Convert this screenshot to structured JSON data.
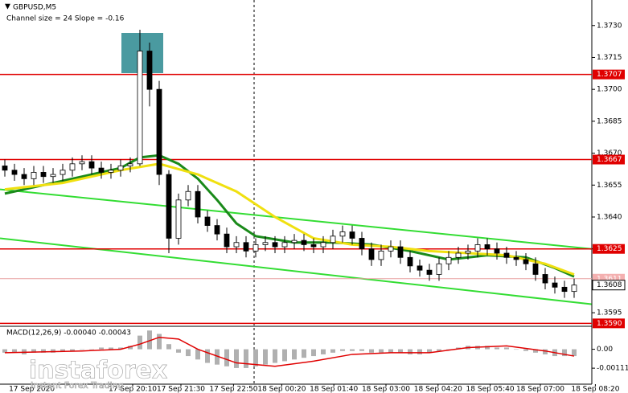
{
  "chart_data": {
    "type": "candlestick",
    "title": "GBPUSD,M5",
    "subtitle": "Channel size = 24 Slope = -0.16",
    "open": [
      1.3664,
      1.3662,
      1.366,
      1.3658,
      1.3661,
      1.3659,
      1.366,
      1.3662,
      1.3665,
      1.3666,
      1.3663,
      1.3661,
      1.3662,
      1.3664,
      1.3665,
      1.3718,
      1.37,
      1.366,
      1.363,
      1.3648,
      1.3652,
      1.364,
      1.3636,
      1.3632,
      1.3626,
      1.3628,
      1.3624,
      1.3627,
      1.3628,
      1.3626,
      1.3628,
      1.3629,
      1.3627,
      1.3626,
      1.3628,
      1.3631,
      1.3633,
      1.363,
      1.3625,
      1.362,
      1.3624,
      1.3626,
      1.3621,
      1.3617,
      1.3615,
      1.3613,
      1.3618,
      1.3621,
      1.3623,
      1.3624,
      1.3627,
      1.3625,
      1.3623,
      1.3621,
      1.362,
      1.3618,
      1.3613,
      1.3609,
      1.3607,
      1.3605
    ],
    "high": [
      1.3667,
      1.3665,
      1.3663,
      1.3664,
      1.3664,
      1.3663,
      1.3665,
      1.3668,
      1.3669,
      1.3669,
      1.3666,
      1.3665,
      1.3667,
      1.3668,
      1.3728,
      1.3722,
      1.3704,
      1.3662,
      1.3651,
      1.3655,
      1.3655,
      1.3643,
      1.3639,
      1.3635,
      1.3631,
      1.3631,
      1.363,
      1.3631,
      1.3631,
      1.3631,
      1.3632,
      1.3632,
      1.363,
      1.3631,
      1.3634,
      1.3636,
      1.3636,
      1.3633,
      1.3628,
      1.3627,
      1.3629,
      1.3629,
      1.3624,
      1.362,
      1.3618,
      1.3621,
      1.3624,
      1.3626,
      1.3627,
      1.363,
      1.363,
      1.3628,
      1.3626,
      1.3624,
      1.3623,
      1.3621,
      1.3616,
      1.3612,
      1.361,
      1.3611
    ],
    "low": [
      1.3659,
      1.3657,
      1.3655,
      1.3655,
      1.3656,
      1.3656,
      1.3657,
      1.3659,
      1.3662,
      1.366,
      1.3658,
      1.3658,
      1.3659,
      1.3661,
      1.3664,
      1.3692,
      1.3655,
      1.3623,
      1.3627,
      1.3645,
      1.3637,
      1.3633,
      1.3629,
      1.3623,
      1.3623,
      1.3621,
      1.3621,
      1.3624,
      1.3623,
      1.3623,
      1.3625,
      1.3624,
      1.3623,
      1.3623,
      1.3625,
      1.3628,
      1.3627,
      1.3622,
      1.3617,
      1.3617,
      1.3621,
      1.3618,
      1.3614,
      1.3612,
      1.361,
      1.361,
      1.3615,
      1.3618,
      1.362,
      1.3621,
      1.3622,
      1.362,
      1.3618,
      1.3617,
      1.3615,
      1.361,
      1.3606,
      1.3604,
      1.3602,
      1.3602
    ],
    "close": [
      1.3662,
      1.366,
      1.3658,
      1.3661,
      1.3659,
      1.366,
      1.3662,
      1.3665,
      1.3666,
      1.3663,
      1.3661,
      1.3662,
      1.3664,
      1.3665,
      1.3718,
      1.37,
      1.366,
      1.363,
      1.3648,
      1.3652,
      1.364,
      1.3636,
      1.3632,
      1.3626,
      1.3628,
      1.3624,
      1.3627,
      1.3628,
      1.3626,
      1.3628,
      1.3629,
      1.3627,
      1.3626,
      1.3628,
      1.3631,
      1.3633,
      1.363,
      1.3625,
      1.362,
      1.3624,
      1.3626,
      1.3621,
      1.3617,
      1.3615,
      1.3613,
      1.3618,
      1.3621,
      1.3623,
      1.3624,
      1.3627,
      1.3625,
      1.3623,
      1.3621,
      1.362,
      1.3618,
      1.3613,
      1.3609,
      1.3607,
      1.3605,
      1.3608
    ],
    "ma": [
      {
        "color": "#1a8a1a",
        "x": [
          0,
          4,
          8,
          12,
          14,
          16,
          18,
          20,
          22,
          24,
          26,
          30,
          34,
          38,
          42,
          46,
          50,
          54,
          57,
          59
        ],
        "values": [
          1.3651,
          1.3655,
          1.3659,
          1.3663,
          1.3668,
          1.3669,
          1.3665,
          1.3658,
          1.3648,
          1.3637,
          1.3631,
          1.3628,
          1.3628,
          1.3627,
          1.3624,
          1.362,
          1.3622,
          1.3621,
          1.3616,
          1.3612
        ]
      },
      {
        "color": "#f0e010",
        "x": [
          0,
          6,
          12,
          16,
          20,
          24,
          28,
          32,
          36,
          40,
          44,
          48,
          52,
          56,
          59
        ],
        "values": [
          1.3653,
          1.3656,
          1.3662,
          1.3665,
          1.366,
          1.3652,
          1.364,
          1.363,
          1.3627,
          1.3626,
          1.3624,
          1.3623,
          1.3622,
          1.3618,
          1.3613
        ]
      }
    ],
    "channel": [
      {
        "color": "#33dd33",
        "x": [
          -0.5,
          60.8
        ],
        "values": [
          1.3653,
          1.3625
        ]
      },
      {
        "color": "#33dd33",
        "x": [
          -0.5,
          60.8
        ],
        "values": [
          1.363,
          1.3599
        ]
      }
    ],
    "levels": [
      1.3707,
      1.3667,
      1.3625,
      {
        "value": 1.359,
        "label": "1.3590"
      }
    ],
    "level_color": "#e00000",
    "ask_line": {
      "value": 1.3611,
      "label": "1.3611"
    },
    "last_price": 1.3608,
    "ylim": [
      1.3589,
      1.3742
    ],
    "yticks": [
      {
        "value": 1.373,
        "label": "1.3730"
      },
      1.3715,
      {
        "value": 1.37,
        "label": "1.3700"
      },
      1.3685,
      {
        "value": 1.367,
        "label": "1.3670"
      },
      1.3655,
      {
        "value": 1.364,
        "label": "1.3640"
      },
      1.3625,
      {
        "value": 1.361,
        "label": "1.3610"
      },
      1.3595
    ],
    "xlim": [
      -0.5,
      59.5
    ],
    "xticks": [
      {
        "value": 2.8,
        "label": "17 Sep 2020"
      },
      {
        "value": 13.25,
        "label": "17 Sep 20:10"
      },
      {
        "value": 18.25,
        "label": "17 Sep 21:30"
      },
      {
        "value": 23.7,
        "label": "17 Sep 22:50"
      },
      {
        "value": 28.7,
        "label": "18 Sep 00:20"
      },
      {
        "value": 34.1,
        "label": "18 Sep 01:40"
      },
      {
        "value": 39.5,
        "label": "18 Sep 03:00"
      },
      {
        "value": 44.9,
        "label": "18 Sep 04:20"
      },
      {
        "value": 50.3,
        "label": "18 Sep 05:40"
      },
      {
        "value": 55.5,
        "label": "18 Sep 07:00"
      },
      {
        "value": 61.2,
        "label": "18 Sep 08:20"
      }
    ],
    "macd": {
      "label": "MACD(12,26,9) -0.00040 -0.00043",
      "histogram": [
        -0.0002,
        -0.0002,
        -0.0003,
        -0.0002,
        -0.0002,
        -0.0002,
        -0.0001,
        -0.0001,
        0,
        0,
        0.0001,
        0.0001,
        0.0001,
        0.0002,
        0.0008,
        0.0011,
        0.0009,
        0.0003,
        -0.0002,
        -0.0004,
        -0.0006,
        -0.0008,
        -0.0009,
        -0.001,
        -0.0011,
        -0.0011,
        -0.001,
        -0.0009,
        -0.0008,
        -0.0007,
        -0.0006,
        -0.0005,
        -0.0004,
        -0.0003,
        -0.0002,
        -0.0001,
        -0.0001,
        -0.0001,
        -0.0002,
        -0.0002,
        -0.0002,
        -0.0002,
        -0.0003,
        -0.0003,
        -0.0002,
        -0.0001,
        0,
        0.0001,
        0.0002,
        0.0002,
        0.0002,
        0.0001,
        0.0001,
        0,
        -0.0001,
        -0.0002,
        -0.0003,
        -0.0004,
        -0.0004,
        -0.0004
      ],
      "hist_color": "#b0b0b0",
      "signal": {
        "color": "#e00000",
        "x": [
          0,
          8,
          12,
          14,
          16,
          18,
          20,
          24,
          28,
          32,
          36,
          40,
          44,
          48,
          52,
          56,
          59
        ],
        "values": [
          -0.0002,
          -0.0001,
          0,
          0.0003,
          0.0007,
          0.0006,
          0,
          -0.0008,
          -0.001,
          -0.0007,
          -0.0003,
          -0.0002,
          -0.0002,
          0.0001,
          0.0002,
          -0.0001,
          -0.0004
        ]
      },
      "ylim": [
        -0.002,
        0.0013
      ],
      "yticks": [
        {
          "value": 0,
          "label": "0.00"
        },
        -0.00111
      ]
    },
    "watermark": {
      "brand": "instaforex",
      "tagline": "Instant Forex Trading"
    }
  }
}
